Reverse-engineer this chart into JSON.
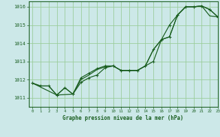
{
  "title": "Graphe pression niveau de la mer (hPa)",
  "background_color": "#cce8e8",
  "grid_color": "#99cc99",
  "line_color": "#1a5e20",
  "xlim": [
    -0.5,
    23
  ],
  "ylim": [
    1010.5,
    1016.3
  ],
  "yticks": [
    1011,
    1012,
    1013,
    1014,
    1015,
    1016
  ],
  "xticks": [
    0,
    1,
    2,
    3,
    4,
    5,
    6,
    7,
    8,
    9,
    10,
    11,
    12,
    13,
    14,
    15,
    16,
    17,
    18,
    19,
    20,
    21,
    22,
    23
  ],
  "series1_x": [
    0,
    1,
    2,
    3,
    4,
    5,
    6,
    7,
    8,
    9,
    10,
    11,
    12,
    13,
    14,
    15,
    16,
    17,
    18,
    19,
    20,
    21,
    22,
    23
  ],
  "series1_y": [
    1011.8,
    1011.65,
    1011.65,
    1011.15,
    1011.55,
    1011.2,
    1012.0,
    1012.25,
    1012.55,
    1012.7,
    1012.75,
    1012.5,
    1012.5,
    1012.5,
    1012.75,
    1013.65,
    1014.2,
    1014.35,
    1015.55,
    1016.0,
    1016.0,
    1016.05,
    1015.5,
    1015.45
  ],
  "series2_x": [
    0,
    1,
    2,
    3,
    4,
    5,
    6,
    7,
    8,
    9,
    10,
    11,
    12,
    13,
    14,
    15,
    16,
    17,
    18,
    19,
    20,
    21,
    22,
    23
  ],
  "series2_y": [
    1011.8,
    1011.65,
    1011.65,
    1011.15,
    1011.55,
    1011.2,
    1012.1,
    1012.35,
    1012.6,
    1012.75,
    1012.75,
    1012.5,
    1012.5,
    1012.5,
    1012.75,
    1013.65,
    1014.2,
    1014.35,
    1015.55,
    1016.0,
    1016.0,
    1016.05,
    1015.85,
    1015.45
  ],
  "series3_x": [
    0,
    3,
    5,
    6,
    7,
    8,
    9,
    10,
    11,
    12,
    13,
    14,
    15,
    16,
    17,
    18,
    19,
    20,
    21,
    22,
    23
  ],
  "series3_y": [
    1011.8,
    1011.15,
    1011.2,
    1011.85,
    1012.1,
    1012.25,
    1012.65,
    1012.75,
    1012.5,
    1012.5,
    1012.5,
    1012.75,
    1013.0,
    1014.2,
    1015.0,
    1015.55,
    1016.0,
    1016.0,
    1016.05,
    1015.85,
    1015.45
  ]
}
